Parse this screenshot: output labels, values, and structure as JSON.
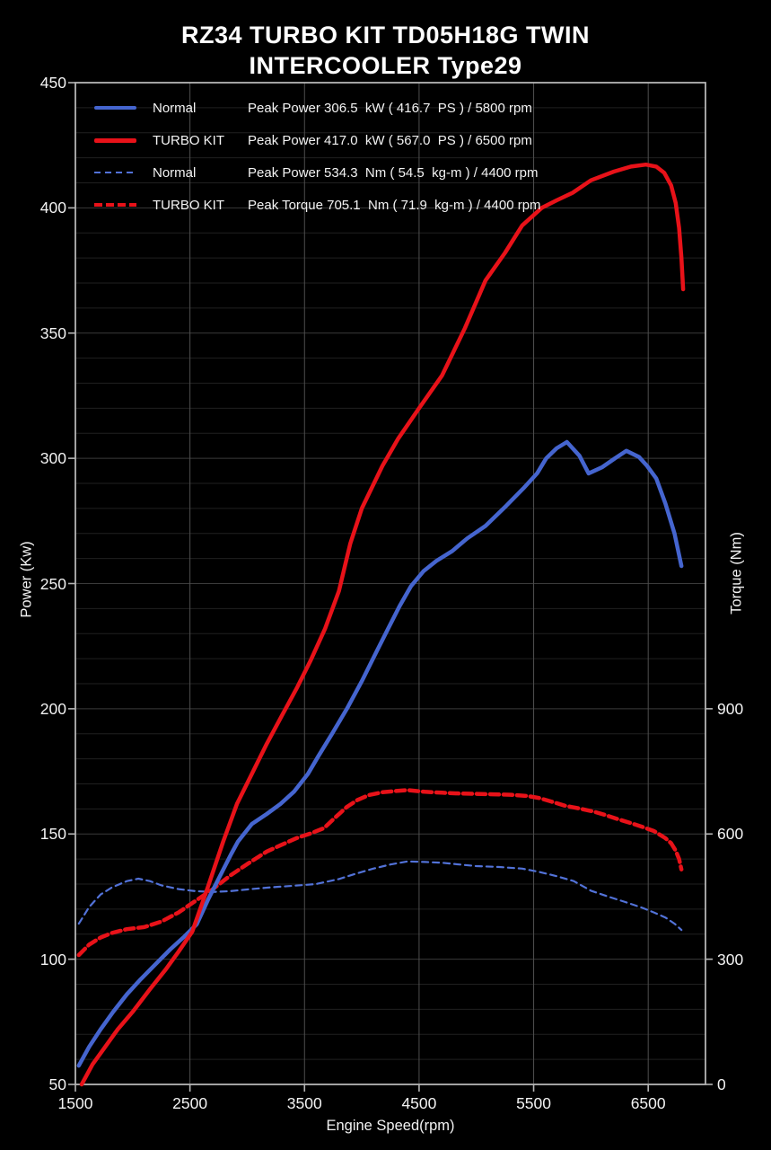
{
  "title": {
    "line1": "RZ34 TURBO KIT TD05H18G TWIN",
    "line2": "INTERCOOLER Type29"
  },
  "axis_titles": {
    "left": "Power (Kw)",
    "right": "Torque (Nm)",
    "bottom": "Engine Speed(rpm)"
  },
  "legend": {
    "rows": [
      {
        "swatch": "blue-solid",
        "label": "Normal",
        "desc": "Peak Power 306.5  kW ( 416.7  PS ) / 5800 rpm"
      },
      {
        "swatch": "red-solid",
        "label": "TURBO KIT",
        "desc": "Peak Power 417.0  kW ( 567.0  PS ) / 6500 rpm"
      },
      {
        "swatch": "blue-dashed",
        "label": "Normal",
        "desc": "Peak Power 534.3  Nm ( 54.5  kg-m ) / 4400 rpm"
      },
      {
        "swatch": "red-dashed",
        "label": "TURBO KIT",
        "desc": "Peak Torque 705.1  Nm ( 71.9  kg-m ) / 4400 rpm"
      }
    ]
  },
  "colors": {
    "background": "#000000",
    "text": "#f2f2f2",
    "blue": "#4565cf",
    "blue_dashed": "#5272d8",
    "red": "#e81219",
    "grid_minor": "#202020",
    "grid_major": "#3a3a3a",
    "grid_vertical": "#4f4f4f",
    "axis": "#b4b4b4"
  },
  "chart_data": {
    "type": "line",
    "title": "RZ34 TURBO KIT TD05H18G TWIN INTERCOOLER Type29",
    "xlabel": "Engine Speed(rpm)",
    "ylabel_left": "Power (Kw)",
    "ylabel_right": "Torque (Nm)",
    "x_range": [
      1500,
      7000
    ],
    "x_ticks": [
      1500,
      2500,
      3500,
      4500,
      5500,
      6500
    ],
    "y_left_range": [
      50,
      450
    ],
    "y_left_ticks": [
      50,
      100,
      150,
      200,
      250,
      300,
      350,
      400,
      450
    ],
    "y_left_minor_step": 10,
    "y_right_range": [
      0,
      900
    ],
    "y_right_ticks": [
      0,
      300,
      600,
      900
    ],
    "y_right_top_kw": 200,
    "grid": true,
    "legend_position": "top-left",
    "peaks": [
      {
        "series": "Normal power",
        "value": "306.5 kW (416.7 PS)",
        "rpm": 5800
      },
      {
        "series": "TURBO KIT power",
        "value": "417.0 kW (567.0 PS)",
        "rpm": 6500
      },
      {
        "series": "Normal torque",
        "value": "534.3 Nm (54.5 kg-m)",
        "rpm": 4400
      },
      {
        "series": "TURBO KIT torque",
        "value": "705.1 Nm (71.9 kg-m)",
        "rpm": 4400
      }
    ],
    "series": [
      {
        "name": "Normal torque",
        "axis": "right",
        "style": "dashed",
        "color_key": "blue_dashed",
        "width": 2.2,
        "dash": "7 5",
        "points": [
          [
            1530,
            385
          ],
          [
            1620,
            425
          ],
          [
            1720,
            455
          ],
          [
            1820,
            472
          ],
          [
            1950,
            487
          ],
          [
            2050,
            493
          ],
          [
            2150,
            487
          ],
          [
            2250,
            477
          ],
          [
            2400,
            468
          ],
          [
            2550,
            463
          ],
          [
            2700,
            461
          ],
          [
            2850,
            463
          ],
          [
            3000,
            467
          ],
          [
            3200,
            472
          ],
          [
            3400,
            476
          ],
          [
            3600,
            480
          ],
          [
            3800,
            492
          ],
          [
            3950,
            505
          ],
          [
            4100,
            517
          ],
          [
            4250,
            527
          ],
          [
            4400,
            534.3
          ],
          [
            4550,
            533
          ],
          [
            4700,
            531
          ],
          [
            4850,
            527
          ],
          [
            5000,
            523
          ],
          [
            5200,
            521
          ],
          [
            5400,
            517
          ],
          [
            5550,
            509
          ],
          [
            5700,
            499
          ],
          [
            5850,
            487
          ],
          [
            6000,
            464
          ],
          [
            6150,
            450
          ],
          [
            6300,
            437
          ],
          [
            6450,
            423
          ],
          [
            6550,
            412
          ],
          [
            6650,
            400
          ],
          [
            6730,
            385
          ],
          [
            6790,
            370
          ]
        ]
      },
      {
        "name": "TURBO KIT torque",
        "axis": "right",
        "style": "dashed",
        "color_key": "red",
        "width": 4.5,
        "dash": "10 5",
        "points": [
          [
            1530,
            310
          ],
          [
            1620,
            335
          ],
          [
            1720,
            352
          ],
          [
            1820,
            363
          ],
          [
            1950,
            372
          ],
          [
            2100,
            377
          ],
          [
            2250,
            390
          ],
          [
            2400,
            412
          ],
          [
            2550,
            440
          ],
          [
            2700,
            468
          ],
          [
            2850,
            500
          ],
          [
            3000,
            528
          ],
          [
            3170,
            558
          ],
          [
            3300,
            574
          ],
          [
            3430,
            590
          ],
          [
            3550,
            601
          ],
          [
            3670,
            614
          ],
          [
            3770,
            640
          ],
          [
            3870,
            665
          ],
          [
            3960,
            681
          ],
          [
            4060,
            693
          ],
          [
            4180,
            700
          ],
          [
            4300,
            703
          ],
          [
            4400,
            705.1
          ],
          [
            4550,
            701
          ],
          [
            4700,
            699
          ],
          [
            4850,
            697
          ],
          [
            5000,
            696
          ],
          [
            5150,
            695
          ],
          [
            5300,
            694
          ],
          [
            5450,
            691
          ],
          [
            5550,
            686
          ],
          [
            5650,
            678
          ],
          [
            5770,
            668
          ],
          [
            5900,
            661
          ],
          [
            6020,
            654
          ],
          [
            6120,
            646
          ],
          [
            6230,
            636
          ],
          [
            6350,
            626
          ],
          [
            6450,
            617
          ],
          [
            6550,
            607
          ],
          [
            6650,
            590
          ],
          [
            6700,
            578
          ],
          [
            6740,
            560
          ],
          [
            6770,
            540
          ],
          [
            6790,
            515
          ]
        ]
      },
      {
        "name": "Normal power",
        "axis": "left",
        "style": "solid",
        "color_key": "blue",
        "width": 4.5,
        "dash": null,
        "points": [
          [
            1530,
            57.5
          ],
          [
            1620,
            65
          ],
          [
            1720,
            72
          ],
          [
            1830,
            79
          ],
          [
            1950,
            86
          ],
          [
            2070,
            92
          ],
          [
            2200,
            98
          ],
          [
            2330,
            104
          ],
          [
            2450,
            109
          ],
          [
            2560,
            114
          ],
          [
            2660,
            124
          ],
          [
            2760,
            133
          ],
          [
            2860,
            142
          ],
          [
            2920,
            147
          ],
          [
            3040,
            154
          ],
          [
            3170,
            158
          ],
          [
            3290,
            162
          ],
          [
            3410,
            167
          ],
          [
            3530,
            174
          ],
          [
            3620,
            181
          ],
          [
            3740,
            190
          ],
          [
            3870,
            200
          ],
          [
            4000,
            211
          ],
          [
            4120,
            222
          ],
          [
            4230,
            232
          ],
          [
            4330,
            241
          ],
          [
            4430,
            249
          ],
          [
            4540,
            255
          ],
          [
            4650,
            259
          ],
          [
            4790,
            263
          ],
          [
            4920,
            268
          ],
          [
            5080,
            273
          ],
          [
            5260,
            281
          ],
          [
            5410,
            288
          ],
          [
            5530,
            294
          ],
          [
            5610,
            300
          ],
          [
            5700,
            304
          ],
          [
            5790,
            306.5
          ],
          [
            5900,
            301
          ],
          [
            5980,
            294
          ],
          [
            6100,
            296.5
          ],
          [
            6210,
            300
          ],
          [
            6310,
            303
          ],
          [
            6420,
            300.5
          ],
          [
            6490,
            297
          ],
          [
            6570,
            292
          ],
          [
            6650,
            282
          ],
          [
            6730,
            270
          ],
          [
            6790,
            257
          ]
        ]
      },
      {
        "name": "TURBO KIT power",
        "axis": "left",
        "style": "solid",
        "color_key": "red",
        "width": 4.5,
        "dash": null,
        "points": [
          [
            1555,
            50
          ],
          [
            1650,
            58
          ],
          [
            1760,
            65
          ],
          [
            1870,
            72
          ],
          [
            2000,
            79
          ],
          [
            2150,
            88
          ],
          [
            2290,
            96
          ],
          [
            2400,
            103
          ],
          [
            2520,
            111
          ],
          [
            2650,
            128
          ],
          [
            2790,
            147
          ],
          [
            2910,
            162
          ],
          [
            3040,
            174
          ],
          [
            3170,
            186
          ],
          [
            3300,
            197
          ],
          [
            3430,
            208
          ],
          [
            3550,
            219
          ],
          [
            3680,
            232
          ],
          [
            3800,
            247
          ],
          [
            3900,
            266
          ],
          [
            4000,
            280
          ],
          [
            4180,
            297
          ],
          [
            4320,
            308
          ],
          [
            4500,
            320
          ],
          [
            4700,
            333
          ],
          [
            4900,
            352
          ],
          [
            5080,
            371
          ],
          [
            5250,
            382
          ],
          [
            5400,
            393
          ],
          [
            5570,
            400
          ],
          [
            5700,
            403
          ],
          [
            5840,
            406
          ],
          [
            6000,
            411
          ],
          [
            6200,
            414.5
          ],
          [
            6350,
            416.5
          ],
          [
            6480,
            417.3
          ],
          [
            6570,
            416.5
          ],
          [
            6640,
            414
          ],
          [
            6700,
            409
          ],
          [
            6740,
            402
          ],
          [
            6770,
            392
          ],
          [
            6790,
            380
          ],
          [
            6805,
            367.5
          ]
        ]
      }
    ]
  }
}
